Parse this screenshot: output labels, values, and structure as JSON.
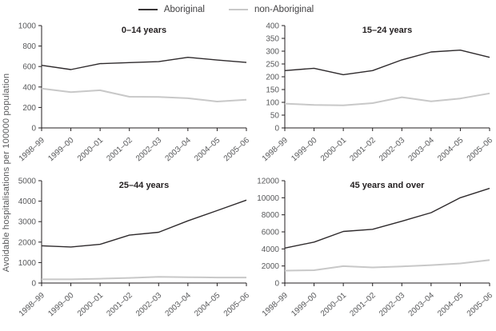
{
  "ylabel": "Avoidable hospitalisations per 100000 population",
  "legend": {
    "items": [
      {
        "label": "Aboriginal",
        "color": "#383436"
      },
      {
        "label": "non-Aboriginal",
        "color": "#c8c8c8"
      }
    ]
  },
  "colors": {
    "axis": "#231f20",
    "tick_text": "#58595b",
    "title_text": "#231f20",
    "aboriginal_line": "#2e2a2c",
    "non_aboriginal_line": "#c8c8c8"
  },
  "chart_data": [
    {
      "type": "line",
      "title": "0–14 years",
      "categories": [
        "1998–99",
        "1999–00",
        "2000–01",
        "2001–02",
        "2002–03",
        "2003–04",
        "2004–05",
        "2005–06"
      ],
      "ylim": [
        0,
        1000
      ],
      "yticks": [
        0,
        200,
        400,
        600,
        800,
        1000
      ],
      "grid": false,
      "series": [
        {
          "name": "Aboriginal",
          "color": "#2e2a2c",
          "width": 1.4,
          "values": [
            612,
            570,
            628,
            638,
            648,
            690,
            663,
            640
          ]
        },
        {
          "name": "non-Aboriginal",
          "color": "#c8c8c8",
          "width": 2,
          "values": [
            385,
            350,
            368,
            305,
            303,
            290,
            258,
            275
          ]
        }
      ]
    },
    {
      "type": "line",
      "title": "15–24 years",
      "categories": [
        "1998–99",
        "1999–00",
        "2000–01",
        "2001–02",
        "2002–03",
        "2003–04",
        "2004–05",
        "2005–06"
      ],
      "ylim": [
        0,
        400
      ],
      "yticks": [
        0,
        50,
        100,
        150,
        200,
        250,
        300,
        350,
        400
      ],
      "grid": false,
      "series": [
        {
          "name": "Aboriginal",
          "color": "#2e2a2c",
          "width": 1.4,
          "values": [
            224,
            233,
            208,
            224,
            266,
            297,
            304,
            276
          ]
        },
        {
          "name": "non-Aboriginal",
          "color": "#c8c8c8",
          "width": 2,
          "values": [
            95,
            90,
            88,
            97,
            120,
            104,
            115,
            135
          ]
        }
      ]
    },
    {
      "type": "line",
      "title": "25–44 years",
      "categories": [
        "1998–99",
        "1999–00",
        "2000–01",
        "2001–02",
        "2002–03",
        "2003–04",
        "2004–05",
        "2005–06"
      ],
      "ylim": [
        0,
        5000
      ],
      "yticks": [
        0,
        1000,
        2000,
        3000,
        4000,
        5000
      ],
      "grid": false,
      "series": [
        {
          "name": "Aboriginal",
          "color": "#2e2a2c",
          "width": 1.4,
          "values": [
            1820,
            1760,
            1890,
            2340,
            2480,
            3040,
            3540,
            4050
          ]
        },
        {
          "name": "non-Aboriginal",
          "color": "#c8c8c8",
          "width": 2,
          "values": [
            180,
            180,
            210,
            250,
            300,
            285,
            270,
            270
          ]
        }
      ]
    },
    {
      "type": "line",
      "title": "45 years and over",
      "categories": [
        "1998–99",
        "1999–00",
        "2000–01",
        "2001–02",
        "2002–03",
        "2003–04",
        "2004–05",
        "2005–06"
      ],
      "ylim": [
        0,
        12000
      ],
      "yticks": [
        0,
        2000,
        4000,
        6000,
        8000,
        10000,
        12000
      ],
      "grid": false,
      "series": [
        {
          "name": "Aboriginal",
          "color": "#2e2a2c",
          "width": 1.4,
          "values": [
            4100,
            4800,
            6050,
            6300,
            7250,
            8250,
            10000,
            11100
          ]
        },
        {
          "name": "non-Aboriginal",
          "color": "#c8c8c8",
          "width": 2,
          "values": [
            1450,
            1500,
            1980,
            1830,
            1950,
            2100,
            2300,
            2700
          ]
        }
      ]
    }
  ]
}
